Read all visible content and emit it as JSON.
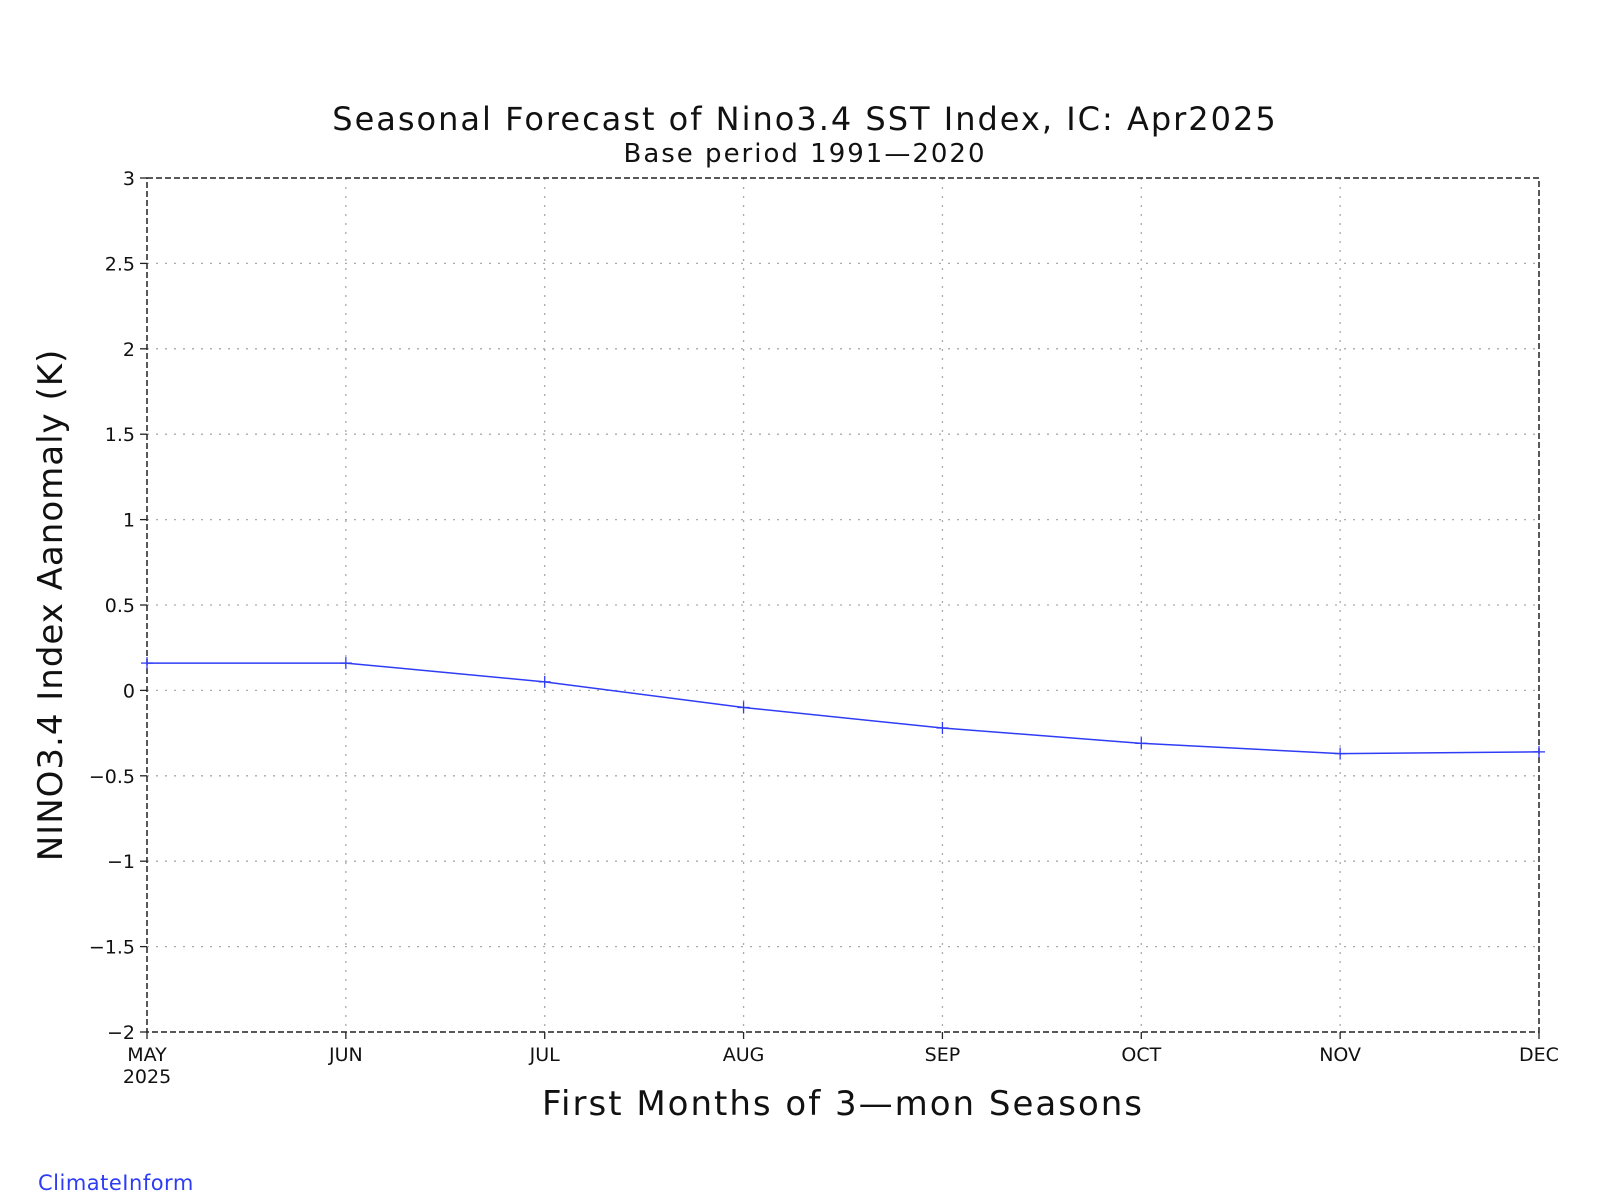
{
  "chart_data": {
    "type": "line",
    "title": "Seasonal Forecast of Nino3.4 SST Index, IC: Apr2025",
    "subtitle": "Base period 1991—2020",
    "xlabel": "First Months of 3—mon Seasons",
    "ylabel": "NINO3.4 Index Aanomaly (K)",
    "categories": [
      "MAY",
      "JUN",
      "JUL",
      "AUG",
      "SEP",
      "OCT",
      "NOV",
      "DEC"
    ],
    "first_category_sublabel": "2025",
    "ylim": [
      -2,
      3
    ],
    "yticks": [
      -2,
      -1.5,
      -1,
      -0.5,
      0,
      0.5,
      1,
      1.5,
      2,
      2.5,
      3
    ],
    "ytick_labels": [
      "−2",
      "−1.5",
      "−1",
      "−0.5",
      "0",
      "0.5",
      "1",
      "1.5",
      "2",
      "2.5",
      "3"
    ],
    "grid": true,
    "series": [
      {
        "values": [
          0.16,
          0.16,
          0.05,
          -0.1,
          -0.22,
          -0.31,
          -0.37,
          -0.36
        ],
        "color": "#2f3cf5"
      }
    ]
  },
  "watermark": "ClimateInform",
  "colors": {
    "line": "#2f3cf5",
    "watermark": "#2f3cf5",
    "grid": "#aaaaaa",
    "frame": "#222222"
  }
}
